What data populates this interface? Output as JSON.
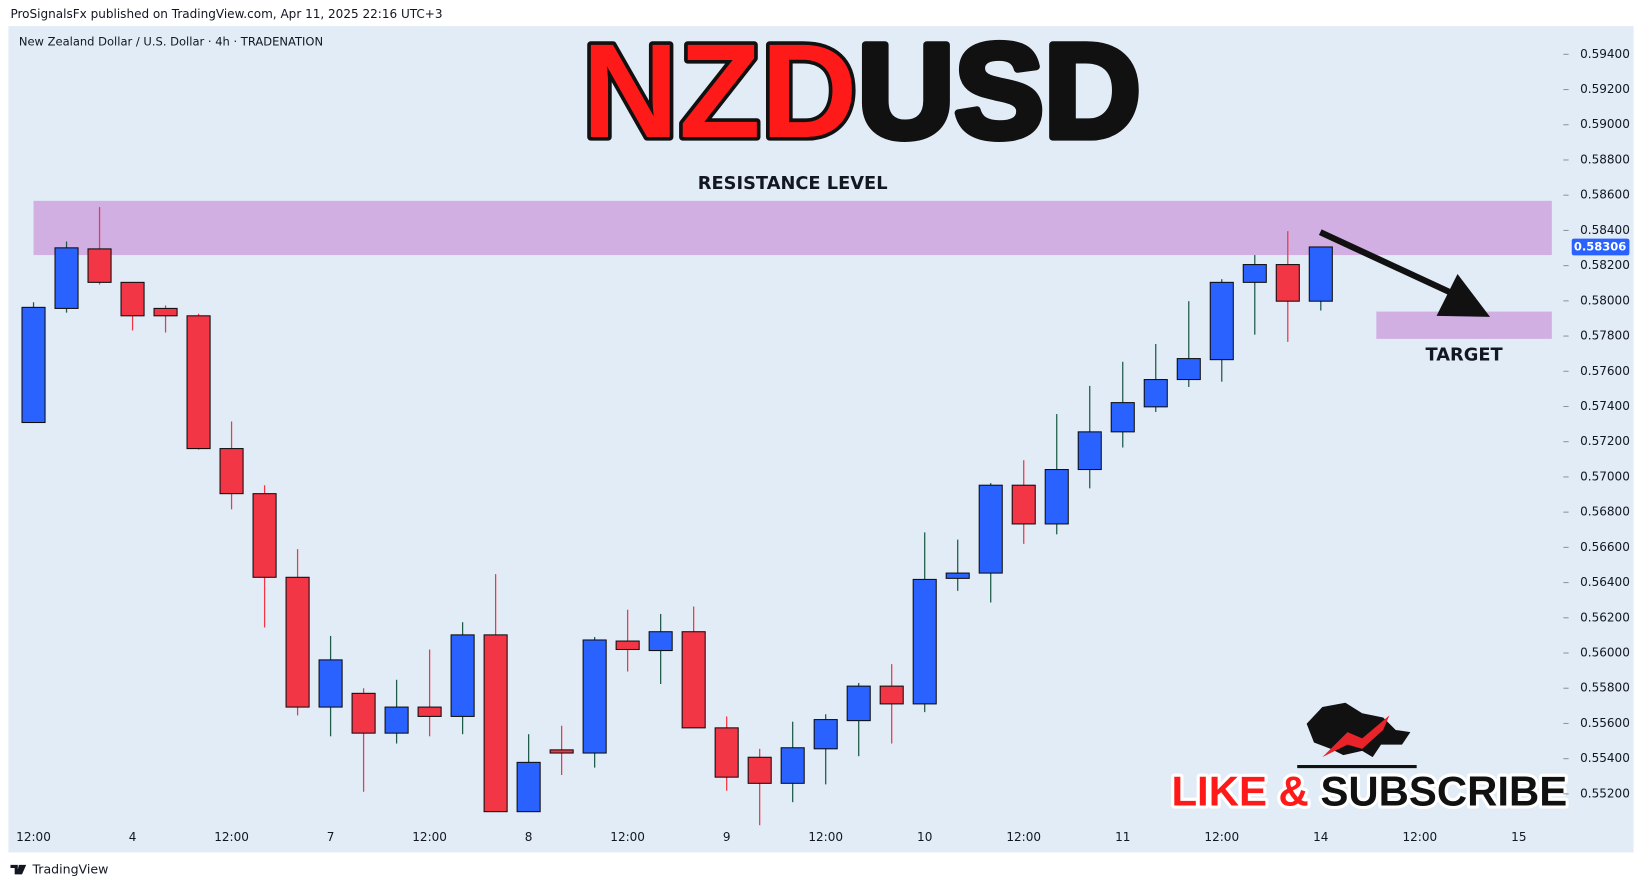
{
  "header": "ProSignalsFx published on TradingView.com, Apr 11, 2025 22:16 UTC+3",
  "footer": "TradingView",
  "chart_data": {
    "type": "candlestick",
    "symbol": "New Zealand Dollar / U.S. Dollar · 4h · TRADENATION",
    "title_parts": [
      {
        "text": "NZD",
        "color": "#ff1a1a"
      },
      {
        "text": "USD",
        "color": "#111111"
      }
    ],
    "up_color": "#2962ff",
    "down_color": "#f23645",
    "up_wick_color": "#1f5a46",
    "categories": [
      "12:00",
      null,
      null,
      "4",
      null,
      null,
      "12:00",
      null,
      null,
      "7",
      null,
      null,
      "12:00",
      null,
      null,
      "8",
      null,
      null,
      "12:00",
      null,
      null,
      "9",
      null,
      null,
      "12:00",
      null,
      null,
      "10",
      null,
      null,
      "12:00",
      null,
      null,
      "11",
      null,
      null,
      "12:00",
      null,
      null,
      "14",
      null,
      null,
      "12:00",
      null,
      null,
      "15"
    ],
    "open": [
      0.57309,
      0.57957,
      0.58295,
      0.58105,
      0.57957,
      0.57915,
      0.57161,
      0.56905,
      0.5643,
      0.55693,
      0.55771,
      0.55545,
      0.55693,
      0.5564,
      0.56103,
      0.55099,
      0.5545,
      0.55432,
      0.56068,
      0.56014,
      0.56121,
      0.55575,
      0.55408,
      0.5526,
      0.55456,
      0.55616,
      0.55812,
      0.55711,
      0.56424,
      0.56454,
      0.56953,
      0.56733,
      0.57042,
      0.57256,
      0.57398,
      0.57553,
      0.57666,
      0.58105,
      0.58206,
      0.57998,
      null,
      null,
      null,
      null,
      null,
      null
    ],
    "high": [
      0.57992,
      0.58337,
      0.58533,
      0.58105,
      0.57974,
      0.57927,
      0.57315,
      0.56953,
      0.5659,
      0.56097,
      0.558,
      0.55848,
      0.5602,
      0.56175,
      0.56448,
      0.55539,
      0.55587,
      0.56091,
      0.56246,
      0.56222,
      0.56264,
      0.5564,
      0.55456,
      0.5561,
      0.55652,
      0.5583,
      0.55937,
      0.56685,
      0.56644,
      0.56965,
      0.57095,
      0.57357,
      0.57517,
      0.57654,
      0.57755,
      0.57998,
      0.58123,
      0.5826,
      0.58396,
      0.58306,
      null,
      null,
      null,
      null,
      null,
      null
    ],
    "low": [
      0.57309,
      0.57933,
      0.58093,
      0.57832,
      0.5782,
      0.57155,
      0.56816,
      0.56145,
      0.55646,
      0.55527,
      0.55212,
      0.55486,
      0.55527,
      0.55539,
      0.55099,
      0.55099,
      0.55307,
      0.55349,
      0.55895,
      0.55824,
      0.55575,
      0.55218,
      0.55022,
      0.55153,
      0.55254,
      0.55414,
      0.55486,
      0.55664,
      0.56353,
      0.56287,
      0.5662,
      0.56674,
      0.56935,
      0.57167,
      0.57369,
      0.57511,
      0.57541,
      0.57808,
      0.57767,
      0.57945,
      null,
      null,
      null,
      null,
      null,
      null
    ],
    "close": [
      0.57963,
      0.58301,
      0.58105,
      0.57915,
      0.57915,
      0.57161,
      0.56905,
      0.5643,
      0.55693,
      0.55961,
      0.55545,
      0.55693,
      0.5564,
      0.56103,
      0.55099,
      0.55379,
      0.55432,
      0.56074,
      0.5602,
      0.56121,
      0.55575,
      0.55295,
      0.5526,
      0.55462,
      0.55622,
      0.55812,
      0.55711,
      0.56418,
      0.56454,
      0.56953,
      0.56733,
      0.57042,
      0.57256,
      0.57422,
      0.57553,
      0.57672,
      0.58105,
      0.58206,
      0.57998,
      0.58306,
      null,
      null,
      null,
      null,
      null,
      null
    ],
    "last_price": 0.58306,
    "ylim": [
      0.54868,
      0.5956
    ],
    "yticks": [
      {
        "value": 0.552,
        "label": "0.55200"
      },
      {
        "value": 0.554,
        "label": "0.55400"
      },
      {
        "value": 0.556,
        "label": "0.55600"
      },
      {
        "value": 0.558,
        "label": "0.55800"
      },
      {
        "value": 0.56,
        "label": "0.56000"
      },
      {
        "value": 0.562,
        "label": "0.56200"
      },
      {
        "value": 0.564,
        "label": "0.56400"
      },
      {
        "value": 0.566,
        "label": "0.56600"
      },
      {
        "value": 0.568,
        "label": "0.56800"
      },
      {
        "value": 0.57,
        "label": "0.57000"
      },
      {
        "value": 0.572,
        "label": "0.57200"
      },
      {
        "value": 0.574,
        "label": "0.57400"
      },
      {
        "value": 0.576,
        "label": "0.57600"
      },
      {
        "value": 0.578,
        "label": "0.57800"
      },
      {
        "value": 0.58,
        "label": "0.58000"
      },
      {
        "value": 0.582,
        "label": "0.58200"
      },
      {
        "value": 0.584,
        "label": "0.58400"
      },
      {
        "value": 0.586,
        "label": "0.58600"
      },
      {
        "value": 0.588,
        "label": "0.58800"
      },
      {
        "value": 0.59,
        "label": "0.59000"
      },
      {
        "value": 0.592,
        "label": "0.59200"
      },
      {
        "value": 0.594,
        "label": "0.59400"
      }
    ],
    "zones": [
      {
        "label": "RESISTANCE LEVEL",
        "y0": 0.5826,
        "y1": 0.58568,
        "color": "#cfa9e0"
      },
      {
        "label": "TARGET",
        "y0": 0.57784,
        "y1": 0.57939,
        "color": "#cfa9e0"
      }
    ]
  },
  "cta_parts": [
    {
      "text": "LIKE & ",
      "color": "#ff1a1a"
    },
    {
      "text": "SUBSCRIBE",
      "color": "#111111"
    }
  ]
}
